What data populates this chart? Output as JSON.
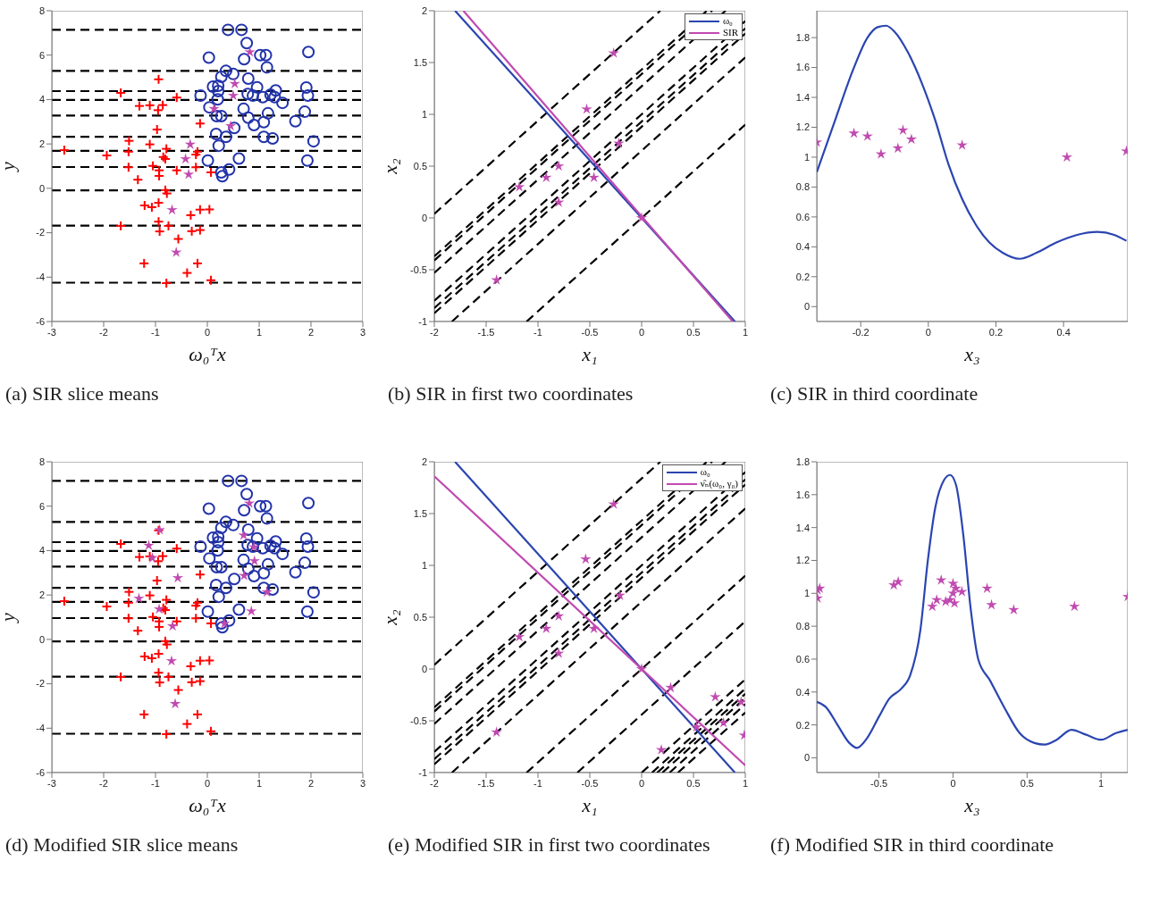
{
  "chart_data": [
    {
      "type": "scatter",
      "title": "(a) SIR slice means",
      "xlabel": "ω₀ᵀx",
      "ylabel": "y",
      "xlim": [
        -3,
        3
      ],
      "ylim": [
        -6,
        8
      ],
      "xticks": [
        -3,
        -2,
        -1,
        0,
        1,
        2,
        3
      ],
      "yticks": [
        -6,
        -4,
        -2,
        0,
        2,
        4,
        6,
        8
      ],
      "series": [
        {
          "marker": "cross",
          "color": "#ff0000",
          "x": [
            -2.76,
            -1.94,
            -1.67,
            -1.67,
            -1.51,
            -1.52,
            -1.52,
            -1.34,
            -1.31,
            -1.22,
            -1.21,
            -1.11,
            -1.11,
            -1.07,
            -1.05,
            -0.97,
            -0.94,
            -0.95,
            -0.86,
            -0.94,
            -0.94,
            -0.93,
            -0.93,
            -0.92,
            -0.85,
            -0.81,
            -0.79,
            -0.81,
            -0.78,
            -0.79,
            -0.75,
            -0.59,
            -0.59,
            -0.56,
            -0.39,
            -0.32,
            -0.3,
            -0.19,
            -0.14,
            -0.14,
            -0.14,
            -0.22,
            -0.22,
            -0.19,
            0.04,
            0.07,
            0.07
          ],
          "values": [
            1.72,
            1.48,
            4.3,
            -1.69,
            2.14,
            1.65,
            0.95,
            0.39,
            3.71,
            -3.38,
            -0.77,
            3.74,
            1.98,
            -0.85,
            1.01,
            2.65,
            4.91,
            3.52,
            3.75,
            -0.65,
            -1.5,
            0.81,
            0.56,
            -1.94,
            1.41,
            1.32,
            1.78,
            -0.08,
            -0.23,
            -4.27,
            -1.69,
            4.09,
            0.81,
            -2.28,
            -3.81,
            -1.21,
            -1.93,
            -3.38,
            2.92,
            -0.96,
            -1.88,
            1.52,
            0.95,
            1.65,
            -0.95,
            0.72,
            -4.14
          ]
        },
        {
          "marker": "circle",
          "color": "#2233aa",
          "x": [
            0.03,
            0.4,
            0.66,
            0.76,
            0.71,
            1.02,
            1.13,
            1.15,
            1.95,
            0.36,
            0.5,
            0.27,
            0.21,
            0.11,
            0.21,
            0.79,
            0.96,
            -0.13,
            0.2,
            0.78,
            0.88,
            1.07,
            1.22,
            1.32,
            1.3,
            1.45,
            1.91,
            1.94,
            0.04,
            0.18,
            0.27,
            0.7,
            0.79,
            0.9,
            1.09,
            1.17,
            1.7,
            1.88,
            0.52,
            0.17,
            0.36,
            1.09,
            1.26,
            2.05,
            0.22,
            0.01,
            0.61,
            1.93,
            0.42,
            0.27,
            0.29
          ],
          "values": [
            5.89,
            7.14,
            7.14,
            6.54,
            5.82,
            6.0,
            6.0,
            5.45,
            6.14,
            5.29,
            5.15,
            5.02,
            4.62,
            4.58,
            4.38,
            4.94,
            4.55,
            4.18,
            4.01,
            4.25,
            4.18,
            4.11,
            4.22,
            4.41,
            4.11,
            3.85,
            4.54,
            4.18,
            3.65,
            3.25,
            3.25,
            3.58,
            3.18,
            2.85,
            2.98,
            3.38,
            3.02,
            3.45,
            2.72,
            2.45,
            2.32,
            2.32,
            2.25,
            2.12,
            1.92,
            1.25,
            1.34,
            1.25,
            0.85,
            0.72,
            0.55
          ]
        },
        {
          "marker": "star",
          "color": "#c04ab0",
          "x": [
            0.82,
            0.53,
            0.5,
            0.13,
            0.45,
            -0.33,
            -0.42,
            -0.36,
            -0.68,
            -0.6
          ],
          "values": [
            6.14,
            4.71,
            4.18,
            3.58,
            2.81,
            1.98,
            1.32,
            0.63,
            -0.97,
            -2.88
          ]
        }
      ],
      "ref_lines": [
        {
          "axis": "y",
          "value": 7.14,
          "color": "#000000",
          "line_style": "dashed"
        },
        {
          "axis": "y",
          "value": 5.29,
          "color": "#000000",
          "line_style": "dashed"
        },
        {
          "axis": "y",
          "value": 4.38,
          "color": "#000000",
          "line_style": "dashed"
        },
        {
          "axis": "y",
          "value": 3.98,
          "color": "#000000",
          "line_style": "dashed"
        },
        {
          "axis": "y",
          "value": 3.28,
          "color": "#000000",
          "line_style": "dashed"
        },
        {
          "axis": "y",
          "value": 2.32,
          "color": "#000000",
          "line_style": "dashed"
        },
        {
          "axis": "y",
          "value": 1.69,
          "color": "#000000",
          "line_style": "dashed"
        },
        {
          "axis": "y",
          "value": 0.96,
          "color": "#000000",
          "line_style": "dashed"
        },
        {
          "axis": "y",
          "value": -0.09,
          "color": "#000000",
          "line_style": "dashed"
        },
        {
          "axis": "y",
          "value": -1.68,
          "color": "#000000",
          "line_style": "dashed"
        },
        {
          "axis": "y",
          "value": -4.25,
          "color": "#000000",
          "line_style": "dashed"
        }
      ]
    },
    {
      "type": "line",
      "title": "(b) SIR in first two coordinates",
      "xlabel": "x₁",
      "ylabel": "x₂",
      "xlim": [
        -2,
        1
      ],
      "ylim": [
        -1,
        2
      ],
      "xticks": [
        -2,
        -1.5,
        -1,
        -0.5,
        0,
        0.5,
        1
      ],
      "yticks": [
        -1,
        -0.5,
        0,
        0.5,
        1,
        1.5,
        2
      ],
      "legend": "top right",
      "series": [
        {
          "line_style": "dashed",
          "color": "#000000",
          "x": [
            -2,
            0.18
          ],
          "values": [
            0.04,
            2
          ]
        },
        {
          "line_style": "dashed",
          "color": "#000000",
          "x": [
            -2,
            0.63
          ],
          "values": [
            -0.37,
            2
          ]
        },
        {
          "line_style": "dashed",
          "color": "#000000",
          "x": [
            -2,
            0.68
          ],
          "values": [
            -0.41,
            2
          ]
        },
        {
          "line_style": "dashed",
          "color": "#000000",
          "x": [
            -2,
            0.81
          ],
          "values": [
            -0.53,
            2
          ]
        },
        {
          "line_style": "dashed",
          "color": "#000000",
          "x": [
            -2,
            1
          ],
          "values": [
            -0.8,
            1.9
          ]
        },
        {
          "line_style": "dashed",
          "color": "#000000",
          "x": [
            -2,
            1
          ],
          "values": [
            -0.87,
            1.83
          ]
        },
        {
          "line_style": "dashed",
          "color": "#000000",
          "x": [
            -2,
            1
          ],
          "values": [
            -0.92,
            1.78
          ]
        },
        {
          "line_style": "dashed",
          "color": "#000000",
          "x": [
            -1.83,
            1
          ],
          "values": [
            -1,
            1.55
          ]
        },
        {
          "line_style": "dashed",
          "color": "#000000",
          "x": [
            -1.11,
            1
          ],
          "values": [
            -1,
            0.9
          ]
        },
        {
          "line_style": "solid",
          "name": "ω₀",
          "color": "#2b45b0",
          "x": [
            -1.8,
            0.9
          ],
          "values": [
            2,
            -1
          ]
        },
        {
          "line_style": "solid",
          "name": "SIR",
          "color": "#c04ab0",
          "x": [
            -1.72,
            0.88
          ],
          "values": [
            2,
            -1
          ]
        },
        {
          "type": "scatter",
          "marker": "star",
          "color": "#c04ab0",
          "x": [
            -1.4,
            -1.18,
            -0.92,
            -0.8,
            -0.8,
            -0.53,
            -0.46,
            -0.27,
            -0.22,
            0
          ],
          "values": [
            -0.6,
            0.3,
            0.39,
            0.5,
            0.15,
            1.05,
            0.39,
            1.59,
            0.72,
            0
          ]
        }
      ]
    },
    {
      "type": "line",
      "title": "(c) SIR in third coordinate",
      "xlabel": "x₃",
      "xlim": [
        -0.33,
        0.59
      ],
      "ylim": [
        -0.1,
        1.98
      ],
      "xticks": [
        -0.2,
        0,
        0.2,
        0.4
      ],
      "yticks": [
        0,
        0.2,
        0.4,
        0.6,
        0.8,
        1,
        1.2,
        1.4,
        1.6,
        1.8
      ],
      "series": [
        {
          "line_style": "solid",
          "color": "#2b45b0",
          "x": [
            -0.33,
            -0.28,
            -0.22,
            -0.18,
            -0.15,
            -0.125,
            -0.1,
            -0.06,
            -0.02,
            0.02,
            0.06,
            0.1,
            0.14,
            0.18,
            0.22,
            0.27,
            0.32,
            0.38,
            0.44,
            0.5,
            0.55,
            0.586
          ],
          "values": [
            0.9,
            1.22,
            1.6,
            1.8,
            1.87,
            1.88,
            1.84,
            1.7,
            1.5,
            1.25,
            0.95,
            0.72,
            0.55,
            0.43,
            0.36,
            0.32,
            0.36,
            0.43,
            0.48,
            0.5,
            0.48,
            0.44
          ]
        },
        {
          "type": "scatter",
          "marker": "star",
          "color": "#c04ab0",
          "x": [
            -0.33,
            -0.22,
            -0.18,
            -0.14,
            -0.09,
            -0.075,
            -0.05,
            0.1,
            0.41,
            0.586
          ],
          "values": [
            1.1,
            1.16,
            1.14,
            1.02,
            1.06,
            1.18,
            1.12,
            1.08,
            1.0,
            1.04
          ]
        }
      ]
    },
    {
      "type": "scatter",
      "title": "(d) Modified SIR slice means",
      "xlabel": "ω₀ᵀx",
      "ylabel": "y",
      "xlim": [
        -3,
        3
      ],
      "ylim": [
        -6,
        8
      ],
      "xticks": [
        -3,
        -2,
        -1,
        0,
        1,
        2,
        3
      ],
      "yticks": [
        -6,
        -4,
        -2,
        0,
        2,
        4,
        6,
        8
      ],
      "series": [
        {
          "marker": "cross",
          "color": "#ff0000",
          "x": [
            -2.76,
            -1.94,
            -1.67,
            -1.67,
            -1.51,
            -1.52,
            -1.52,
            -1.34,
            -1.31,
            -1.22,
            -1.21,
            -1.11,
            -1.11,
            -1.07,
            -1.05,
            -0.97,
            -0.94,
            -0.95,
            -0.86,
            -0.94,
            -0.94,
            -0.93,
            -0.93,
            -0.92,
            -0.85,
            -0.81,
            -0.79,
            -0.81,
            -0.78,
            -0.79,
            -0.75,
            -0.59,
            -0.59,
            -0.56,
            -0.39,
            -0.32,
            -0.3,
            -0.19,
            -0.14,
            -0.14,
            -0.14,
            -0.22,
            -0.22,
            -0.19,
            0.04,
            0.07,
            0.07
          ],
          "values": [
            1.72,
            1.48,
            4.3,
            -1.69,
            2.14,
            1.65,
            0.95,
            0.39,
            3.71,
            -3.38,
            -0.77,
            3.74,
            1.98,
            -0.85,
            1.01,
            2.65,
            4.91,
            3.52,
            3.75,
            -0.65,
            -1.5,
            0.81,
            0.56,
            -1.94,
            1.41,
            1.32,
            1.78,
            -0.08,
            -0.23,
            -4.27,
            -1.69,
            4.09,
            0.81,
            -2.28,
            -3.81,
            -1.21,
            -1.93,
            -3.38,
            2.92,
            -0.96,
            -1.88,
            1.52,
            0.95,
            1.65,
            -0.95,
            0.72,
            -4.14
          ]
        },
        {
          "marker": "circle",
          "color": "#2233aa",
          "x": [
            0.03,
            0.4,
            0.66,
            0.76,
            0.71,
            1.02,
            1.13,
            1.15,
            1.95,
            0.36,
            0.5,
            0.27,
            0.21,
            0.11,
            0.21,
            0.79,
            0.96,
            -0.13,
            0.2,
            0.78,
            0.88,
            1.07,
            1.22,
            1.32,
            1.3,
            1.45,
            1.91,
            1.94,
            0.04,
            0.18,
            0.27,
            0.7,
            0.79,
            0.9,
            1.09,
            1.17,
            1.7,
            1.88,
            0.52,
            0.17,
            0.36,
            1.09,
            1.26,
            2.05,
            0.22,
            0.01,
            0.61,
            1.93,
            0.42,
            0.27,
            0.29
          ],
          "values": [
            5.89,
            7.14,
            7.14,
            6.54,
            5.82,
            6.0,
            6.0,
            5.45,
            6.14,
            5.29,
            5.15,
            5.02,
            4.62,
            4.58,
            4.38,
            4.94,
            4.55,
            4.18,
            4.01,
            4.25,
            4.18,
            4.11,
            4.22,
            4.41,
            4.11,
            3.85,
            4.54,
            4.18,
            3.65,
            3.25,
            3.25,
            3.58,
            3.18,
            2.85,
            2.98,
            3.38,
            3.02,
            3.45,
            2.72,
            2.45,
            2.32,
            2.32,
            2.25,
            2.12,
            1.92,
            1.25,
            1.34,
            1.25,
            0.85,
            0.72,
            0.55
          ]
        },
        {
          "marker": "star",
          "color": "#c04ab0",
          "x": [
            -1.32,
            -1.13,
            -1.06,
            -0.92,
            -0.93,
            -0.57,
            -0.67,
            -0.69,
            -0.62,
            0.33,
            0.7,
            0.81,
            0.71,
            0.9,
            0.91,
            0.85,
            1.15
          ],
          "values": [
            1.84,
            4.23,
            3.67,
            4.93,
            1.36,
            2.77,
            0.6,
            -0.97,
            -2.9,
            0.71,
            4.69,
            6.13,
            2.87,
            4.16,
            3.53,
            1.27,
            2.13
          ]
        }
      ],
      "ref_lines": [
        {
          "axis": "y",
          "value": 7.14,
          "color": "#000000",
          "line_style": "dashed"
        },
        {
          "axis": "y",
          "value": 5.29,
          "color": "#000000",
          "line_style": "dashed"
        },
        {
          "axis": "y",
          "value": 4.38,
          "color": "#000000",
          "line_style": "dashed"
        },
        {
          "axis": "y",
          "value": 3.98,
          "color": "#000000",
          "line_style": "dashed"
        },
        {
          "axis": "y",
          "value": 3.28,
          "color": "#000000",
          "line_style": "dashed"
        },
        {
          "axis": "y",
          "value": 2.32,
          "color": "#000000",
          "line_style": "dashed"
        },
        {
          "axis": "y",
          "value": 1.69,
          "color": "#000000",
          "line_style": "dashed"
        },
        {
          "axis": "y",
          "value": 0.96,
          "color": "#000000",
          "line_style": "dashed"
        },
        {
          "axis": "y",
          "value": -0.09,
          "color": "#000000",
          "line_style": "dashed"
        },
        {
          "axis": "y",
          "value": -1.68,
          "color": "#000000",
          "line_style": "dashed"
        },
        {
          "axis": "y",
          "value": -4.25,
          "color": "#000000",
          "line_style": "dashed"
        }
      ]
    },
    {
      "type": "line",
      "title": "(e) Modified SIR in first two coordinates",
      "xlabel": "x₁",
      "ylabel": "x₂",
      "xlim": [
        -2,
        1
      ],
      "ylim": [
        -1,
        2
      ],
      "xticks": [
        -2,
        -1.5,
        -1,
        -0.5,
        0,
        0.5,
        1
      ],
      "yticks": [
        -1,
        -0.5,
        0,
        0.5,
        1,
        1.5,
        2
      ],
      "legend": "top right",
      "series": [
        {
          "line_style": "dashed",
          "color": "#000000",
          "x": [
            -2,
            0.18
          ],
          "values": [
            0.04,
            2
          ]
        },
        {
          "line_style": "dashed",
          "color": "#000000",
          "x": [
            -2,
            0.63
          ],
          "values": [
            -0.37,
            2
          ]
        },
        {
          "line_style": "dashed",
          "color": "#000000",
          "x": [
            -2,
            0.68
          ],
          "values": [
            -0.41,
            2
          ]
        },
        {
          "line_style": "dashed",
          "color": "#000000",
          "x": [
            -2,
            0.81
          ],
          "values": [
            -0.53,
            2
          ]
        },
        {
          "line_style": "dashed",
          "color": "#000000",
          "x": [
            -2,
            1
          ],
          "values": [
            -0.8,
            1.9
          ]
        },
        {
          "line_style": "dashed",
          "color": "#000000",
          "x": [
            -2,
            1
          ],
          "values": [
            -0.87,
            1.83
          ]
        },
        {
          "line_style": "dashed",
          "color": "#000000",
          "x": [
            -2,
            1
          ],
          "values": [
            -0.92,
            1.78
          ]
        },
        {
          "line_style": "dashed",
          "color": "#000000",
          "x": [
            -1.83,
            1
          ],
          "values": [
            -1,
            1.55
          ]
        },
        {
          "line_style": "dashed",
          "color": "#000000",
          "x": [
            -1.11,
            1
          ],
          "values": [
            -1,
            0.9
          ]
        },
        {
          "line_style": "dashed",
          "color": "#000000",
          "x": [
            -0.62,
            1
          ],
          "values": [
            -1,
            0.46
          ]
        },
        {
          "line_style": "dashed",
          "color": "#000000",
          "x": [
            0,
            1
          ],
          "values": [
            -1,
            -0.1
          ]
        },
        {
          "line_style": "dashed",
          "color": "#000000",
          "x": [
            0.1,
            1
          ],
          "values": [
            -1,
            -0.19
          ]
        },
        {
          "line_style": "dashed",
          "color": "#000000",
          "x": [
            0.15,
            1
          ],
          "values": [
            -1,
            -0.24
          ]
        },
        {
          "line_style": "dashed",
          "color": "#000000",
          "x": [
            0.2,
            1
          ],
          "values": [
            -1,
            -0.28
          ]
        },
        {
          "line_style": "dashed",
          "color": "#000000",
          "x": [
            0.27,
            1
          ],
          "values": [
            -1,
            -0.34
          ]
        },
        {
          "line_style": "dashed",
          "color": "#000000",
          "x": [
            0.35,
            1
          ],
          "values": [
            -1,
            -0.42
          ]
        },
        {
          "line_style": "solid",
          "name": "ω₀",
          "color": "#2b45b0",
          "x": [
            -1.8,
            0.9
          ],
          "values": [
            2,
            -1
          ]
        },
        {
          "line_style": "solid",
          "name": "ν̂ₙ(ω₀, γ₀)",
          "color": "#c04ab0",
          "x": [
            -2,
            1
          ],
          "values": [
            1.86,
            -0.93
          ]
        },
        {
          "type": "scatter",
          "marker": "star",
          "color": "#c04ab0",
          "x": [
            -1.4,
            -1.18,
            -0.92,
            -0.8,
            -0.8,
            -0.54,
            -0.46,
            -0.27,
            -0.21,
            0,
            0.28,
            0.19,
            0.53,
            0.71,
            0.79,
            0.96,
            0.99
          ],
          "values": [
            -0.61,
            0.31,
            0.39,
            0.51,
            0.15,
            1.06,
            0.39,
            1.59,
            0.71,
            0,
            -0.18,
            -0.78,
            -0.56,
            -0.27,
            -0.52,
            -0.32,
            -0.64
          ]
        }
      ]
    },
    {
      "type": "line",
      "title": "(f) Modified SIR in third coordinate",
      "xlabel": "x₃",
      "xlim": [
        -0.92,
        1.18
      ],
      "ylim": [
        -0.09,
        1.8
      ],
      "xticks": [
        -0.5,
        0,
        0.5,
        1
      ],
      "yticks": [
        0,
        0.2,
        0.4,
        0.6,
        0.8,
        1,
        1.2,
        1.4,
        1.6,
        1.8
      ],
      "series": [
        {
          "line_style": "solid",
          "color": "#2b45b0",
          "x": [
            -0.92,
            -0.86,
            -0.78,
            -0.7,
            -0.65,
            -0.58,
            -0.5,
            -0.43,
            -0.35,
            -0.29,
            -0.22,
            -0.17,
            -0.12,
            -0.06,
            -0.02,
            0.02,
            0.07,
            0.12,
            0.17,
            0.25,
            0.35,
            0.45,
            0.55,
            0.62,
            0.7,
            0.8,
            0.9,
            1.0,
            1.1,
            1.18
          ],
          "values": [
            0.34,
            0.31,
            0.2,
            0.09,
            0.06,
            0.12,
            0.25,
            0.36,
            0.42,
            0.5,
            0.78,
            1.2,
            1.52,
            1.69,
            1.72,
            1.66,
            1.35,
            0.9,
            0.6,
            0.47,
            0.3,
            0.15,
            0.09,
            0.08,
            0.11,
            0.17,
            0.14,
            0.11,
            0.15,
            0.17
          ]
        },
        {
          "type": "scatter",
          "marker": "star",
          "color": "#c04ab0",
          "x": [
            -0.915,
            -0.915,
            -0.9,
            -0.4,
            -0.37,
            -0.14,
            -0.11,
            -0.08,
            -0.05,
            -0.02,
            0,
            0,
            0.01,
            0.02,
            0.06,
            0.23,
            0.26,
            0.41,
            0.82,
            1.18
          ],
          "values": [
            1.02,
            0.97,
            1.03,
            1.05,
            1.07,
            0.92,
            0.96,
            1.08,
            0.95,
            0.96,
            1.06,
            1.0,
            0.94,
            1.03,
            1.01,
            1.03,
            0.93,
            0.9,
            0.92,
            0.98
          ]
        }
      ]
    }
  ]
}
